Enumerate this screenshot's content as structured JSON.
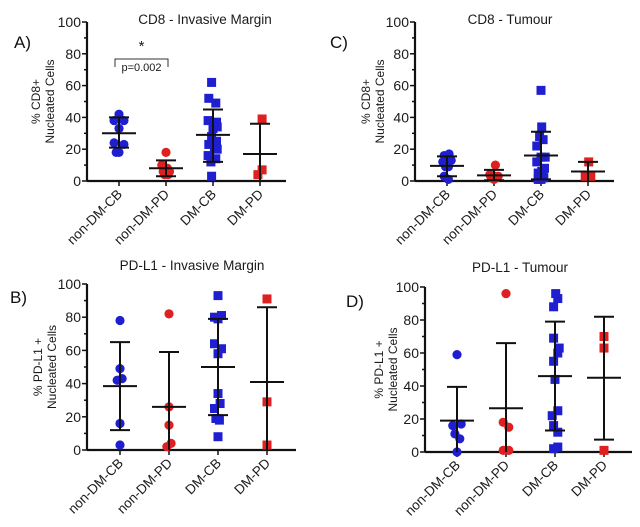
{
  "chart_data": [
    {
      "id": "A",
      "panel_label": "A)",
      "type": "scatter",
      "title": "CD8 - Invasive Margin",
      "ylabel_lines": [
        "% CD8+",
        "Nucleated Cells"
      ],
      "ylim": [
        0,
        100
      ],
      "yticks": [
        0,
        20,
        40,
        60,
        80,
        100
      ],
      "categories": [
        "non-DM-CB",
        "non-DM-PD",
        "DM-CB",
        "DM-PD"
      ],
      "groups": [
        {
          "name": "non-DM-CB",
          "color": "#1f1fd1",
          "marker": "circle",
          "mean": 30,
          "sd_low": 21,
          "sd_high": 40,
          "points": [
            [
              -0.35,
              38
            ],
            [
              0,
              42
            ],
            [
              0.35,
              38
            ],
            [
              0,
              33
            ],
            [
              -0.35,
              24
            ],
            [
              0.35,
              23
            ],
            [
              0,
              18
            ],
            [
              -0.2,
              18
            ]
          ]
        },
        {
          "name": "non-DM-PD",
          "color": "#e02020",
          "marker": "circle",
          "mean": 8,
          "sd_low": 3,
          "sd_high": 13,
          "points": [
            [
              0,
              18
            ],
            [
              -0.3,
              10
            ],
            [
              0.1,
              8
            ],
            [
              -0.2,
              6
            ],
            [
              0.25,
              6
            ],
            [
              -0.05,
              5
            ],
            [
              0.15,
              4
            ],
            [
              -0.1,
              4
            ]
          ]
        },
        {
          "name": "DM-CB",
          "color": "#1f1fd1",
          "marker": "square",
          "mean": 29,
          "sd_low": 12,
          "sd_high": 45,
          "points": [
            [
              -0.1,
              62
            ],
            [
              -0.3,
              52
            ],
            [
              0.2,
              49
            ],
            [
              -0.35,
              38
            ],
            [
              0.25,
              37
            ],
            [
              0,
              33
            ],
            [
              0.3,
              34
            ],
            [
              -0.1,
              28
            ],
            [
              0.25,
              25
            ],
            [
              -0.3,
              23
            ],
            [
              0.1,
              21
            ],
            [
              0.3,
              20
            ],
            [
              -0.35,
              16
            ],
            [
              0.2,
              14
            ],
            [
              -0.15,
              12
            ],
            [
              -0.1,
              3
            ]
          ]
        },
        {
          "name": "DM-PD",
          "color": "#e02020",
          "marker": "square",
          "mean": 17,
          "sd_low": 0,
          "sd_high": 36,
          "points": [
            [
              0.15,
              39
            ],
            [
              0.15,
              7
            ],
            [
              -0.15,
              4
            ]
          ]
        }
      ],
      "annotation": {
        "text": "p=0.002",
        "star": "*",
        "between": [
          "non-DM-CB",
          "non-DM-PD"
        ]
      }
    },
    {
      "id": "C",
      "panel_label": "C)",
      "type": "scatter",
      "title": "CD8 - Tumour",
      "ylabel_lines": [
        "% CD8+",
        "Nucleated Cells"
      ],
      "ylim": [
        0,
        100
      ],
      "yticks": [
        0,
        20,
        40,
        60,
        80,
        100
      ],
      "categories": [
        "non-DM-CB",
        "non-DM-PD",
        "DM-CB",
        "DM-PD"
      ],
      "groups": [
        {
          "name": "non-DM-CB",
          "color": "#1f1fd1",
          "marker": "circle",
          "mean": 9.5,
          "sd_low": 3,
          "sd_high": 15.5,
          "points": [
            [
              -0.2,
              16
            ],
            [
              0.15,
              17
            ],
            [
              -0.3,
              12
            ],
            [
              0.3,
              13
            ],
            [
              -0.1,
              9
            ],
            [
              0.1,
              9
            ],
            [
              -0.2,
              3
            ],
            [
              0.1,
              1
            ]
          ]
        },
        {
          "name": "non-DM-PD",
          "color": "#e02020",
          "marker": "circle",
          "mean": 3.5,
          "sd_low": 0.5,
          "sd_high": 7,
          "points": [
            [
              0.1,
              10
            ],
            [
              -0.3,
              4
            ],
            [
              -0.1,
              3
            ],
            [
              0.1,
              3
            ],
            [
              0.3,
              3
            ],
            [
              -0.2,
              2
            ],
            [
              0.2,
              2
            ],
            [
              0,
              1
            ]
          ]
        },
        {
          "name": "DM-CB",
          "color": "#1f1fd1",
          "marker": "square",
          "mean": 16,
          "sd_low": 1,
          "sd_high": 31,
          "points": [
            [
              0,
              57
            ],
            [
              0.05,
              34
            ],
            [
              -0.1,
              28
            ],
            [
              0.15,
              26
            ],
            [
              -0.3,
              22
            ],
            [
              0.3,
              15
            ],
            [
              0,
              15
            ],
            [
              -0.3,
              12
            ],
            [
              0.25,
              8
            ],
            [
              0.05,
              6
            ],
            [
              -0.2,
              5
            ],
            [
              0.15,
              4
            ],
            [
              -0.1,
              3
            ],
            [
              0.2,
              2
            ],
            [
              0,
              1
            ],
            [
              -0.2,
              1
            ]
          ]
        },
        {
          "name": "DM-PD",
          "color": "#e02020",
          "marker": "square",
          "mean": 6,
          "sd_low": 0,
          "sd_high": 12,
          "points": [
            [
              0.05,
              12
            ],
            [
              -0.2,
              3
            ],
            [
              0.2,
              3
            ]
          ]
        }
      ]
    },
    {
      "id": "B",
      "panel_label": "B)",
      "type": "scatter",
      "title": "PD-L1 - Invasive Margin",
      "ylabel_lines": [
        "% PD-L1 +",
        "Nucleated Cells"
      ],
      "ylim": [
        0,
        100
      ],
      "yticks": [
        0,
        20,
        40,
        60,
        80,
        100
      ],
      "categories": [
        "non-DM-CB",
        "non-DM-PD",
        "DM-CB",
        "DM-PD"
      ],
      "groups": [
        {
          "name": "non-DM-CB",
          "color": "#1f1fd1",
          "marker": "circle",
          "mean": 38.5,
          "sd_low": 12,
          "sd_high": 65,
          "points": [
            [
              0,
              78
            ],
            [
              0,
              49
            ],
            [
              -0.2,
              42
            ],
            [
              0.15,
              43
            ],
            [
              0,
              16
            ],
            [
              0,
              3
            ]
          ]
        },
        {
          "name": "non-DM-PD",
          "color": "#e02020",
          "marker": "circle",
          "mean": 26,
          "sd_low": 0,
          "sd_high": 59,
          "points": [
            [
              0,
              82
            ],
            [
              0,
              26
            ],
            [
              0,
              15
            ],
            [
              0.15,
              4
            ],
            [
              -0.15,
              2
            ]
          ]
        },
        {
          "name": "DM-CB",
          "color": "#1f1fd1",
          "marker": "square",
          "mean": 50,
          "sd_low": 21,
          "sd_high": 79,
          "points": [
            [
              0,
              93
            ],
            [
              -0.25,
              80
            ],
            [
              0,
              79
            ],
            [
              0.25,
              81
            ],
            [
              -0.25,
              64
            ],
            [
              0.25,
              61
            ],
            [
              0,
              58
            ],
            [
              0,
              34
            ],
            [
              -0.25,
              25
            ],
            [
              0.15,
              28
            ],
            [
              -0.15,
              19
            ],
            [
              0.1,
              18
            ],
            [
              0,
              8
            ]
          ]
        },
        {
          "name": "DM-PD",
          "color": "#e02020",
          "marker": "square",
          "mean": 41,
          "sd_low": 0,
          "sd_high": 86,
          "points": [
            [
              0,
              91
            ],
            [
              0,
              29
            ],
            [
              0,
              3
            ]
          ]
        }
      ]
    },
    {
      "id": "D",
      "panel_label": "D)",
      "type": "scatter",
      "title": "PD-L1 - Tumour",
      "ylabel_lines": [
        "% PD-L1 +",
        "Nucleated Cells"
      ],
      "ylim": [
        0,
        100
      ],
      "yticks": [
        0,
        20,
        40,
        60,
        80,
        100
      ],
      "categories": [
        "non-DM-CB",
        "non-DM-PD",
        "DM-CB",
        "DM-PD"
      ],
      "groups": [
        {
          "name": "non-DM-CB",
          "color": "#1f1fd1",
          "marker": "circle",
          "mean": 19,
          "sd_low": 0,
          "sd_high": 39.5,
          "points": [
            [
              0,
              59
            ],
            [
              -0.3,
              16
            ],
            [
              0.3,
              17
            ],
            [
              -0.15,
              11
            ],
            [
              0.2,
              8
            ],
            [
              0,
              0
            ]
          ]
        },
        {
          "name": "non-DM-PD",
          "color": "#e02020",
          "marker": "circle",
          "mean": 26.5,
          "sd_low": 0,
          "sd_high": 66,
          "points": [
            [
              0,
              96
            ],
            [
              -0.2,
              18
            ],
            [
              0.2,
              15
            ],
            [
              -0.2,
              1
            ],
            [
              0.2,
              1
            ]
          ]
        },
        {
          "name": "DM-CB",
          "color": "#1f1fd1",
          "marker": "square",
          "mean": 46,
          "sd_low": 13,
          "sd_high": 79,
          "points": [
            [
              0.05,
              96
            ],
            [
              0.2,
              93
            ],
            [
              -0.1,
              88
            ],
            [
              -0.1,
              69
            ],
            [
              0.3,
              63
            ],
            [
              0.2,
              60
            ],
            [
              -0.1,
              55
            ],
            [
              0,
              44
            ],
            [
              0.2,
              25
            ],
            [
              -0.2,
              22
            ],
            [
              -0.1,
              16
            ],
            [
              0.2,
              12
            ],
            [
              -0.1,
              2
            ],
            [
              0.2,
              3
            ]
          ]
        },
        {
          "name": "DM-PD",
          "color": "#e02020",
          "marker": "square",
          "mean": 45,
          "sd_low": 7.5,
          "sd_high": 82,
          "points": [
            [
              0,
              70
            ],
            [
              0,
              63
            ],
            [
              0,
              1
            ]
          ]
        }
      ]
    }
  ]
}
